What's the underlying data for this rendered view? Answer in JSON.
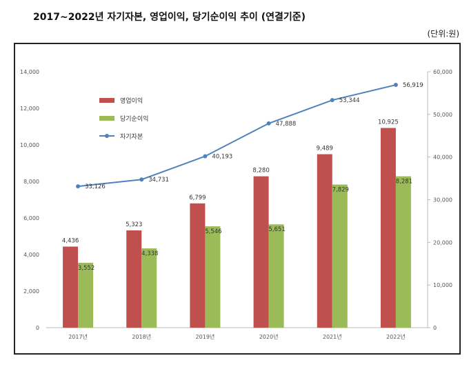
{
  "title": "2017~2022년  자기자본, 영업이익, 당기순이익 추이 (연결기준)",
  "unit": "(단위:원)",
  "colors": {
    "operating": "#c0504d",
    "net": "#9bbb59",
    "equity": "#4f81bd"
  },
  "chart_data": {
    "type": "bar",
    "categories": [
      "2017년",
      "2018년",
      "2019년",
      "2020년",
      "2021년",
      "2022년"
    ],
    "series": [
      {
        "name": "영업이익",
        "type": "bar",
        "axis": "left",
        "values": [
          4436,
          5323,
          6799,
          8280,
          9489,
          10925
        ],
        "labels": [
          "4,436",
          "5,323",
          "6,799",
          "8,280",
          "9,489",
          "10,925"
        ]
      },
      {
        "name": "당기순이익",
        "type": "bar",
        "axis": "left",
        "values": [
          3552,
          4338,
          5546,
          5651,
          7829,
          8281
        ],
        "labels": [
          "3,552",
          "4,338",
          "5,546",
          "5,651",
          "7,829",
          "8,281"
        ]
      },
      {
        "name": "자기자본",
        "type": "line",
        "axis": "right",
        "values": [
          33126,
          34731,
          40193,
          47888,
          53344,
          56919
        ],
        "labels": [
          "33,126",
          "34,731",
          "40,193",
          "47,888",
          "53,344",
          "56,919"
        ]
      }
    ],
    "y_left": {
      "min": 0,
      "max": 14000,
      "ticks": [
        "0",
        "2,000",
        "4,000",
        "6,000",
        "8,000",
        "10,000",
        "12,000",
        "14,000"
      ]
    },
    "y_right": {
      "min": 0,
      "max": 60000,
      "ticks": [
        "0",
        "10,000",
        "20,000",
        "30,000",
        "40,000",
        "50,000",
        "60,000"
      ]
    },
    "legend_position": "top-left"
  }
}
